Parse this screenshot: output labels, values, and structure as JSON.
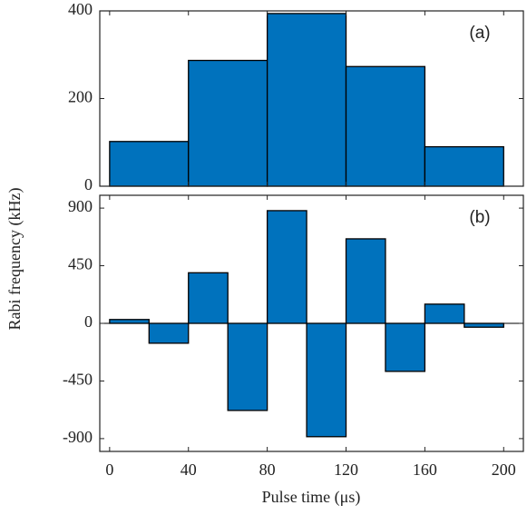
{
  "chart_data": [
    {
      "type": "histogram",
      "ylabel": "Rabi frequency (kHz)",
      "annotation": "(a)",
      "bins": [
        0,
        40,
        80,
        120,
        160,
        200
      ],
      "values": [
        102,
        287,
        394,
        273,
        90
      ],
      "color": "#0072bd",
      "ylim": [
        0,
        400
      ],
      "yticks": [
        0,
        200,
        400
      ],
      "xlim": [
        -5,
        210
      ]
    },
    {
      "type": "histogram",
      "xlabel": "Pulse time (μs)",
      "annotation": "(b)",
      "bins": [
        0,
        20,
        40,
        60,
        80,
        100,
        120,
        140,
        160,
        180,
        200
      ],
      "values": [
        30,
        -155,
        395,
        -680,
        880,
        -885,
        660,
        -375,
        150,
        -30
      ],
      "color": "#0072bd",
      "ylim": [
        -1000,
        1000
      ],
      "yticks": [
        -900,
        -450,
        0,
        450,
        900
      ],
      "xlim": [
        -5,
        210
      ],
      "xticks": [
        0,
        40,
        80,
        120,
        160,
        200
      ]
    }
  ]
}
